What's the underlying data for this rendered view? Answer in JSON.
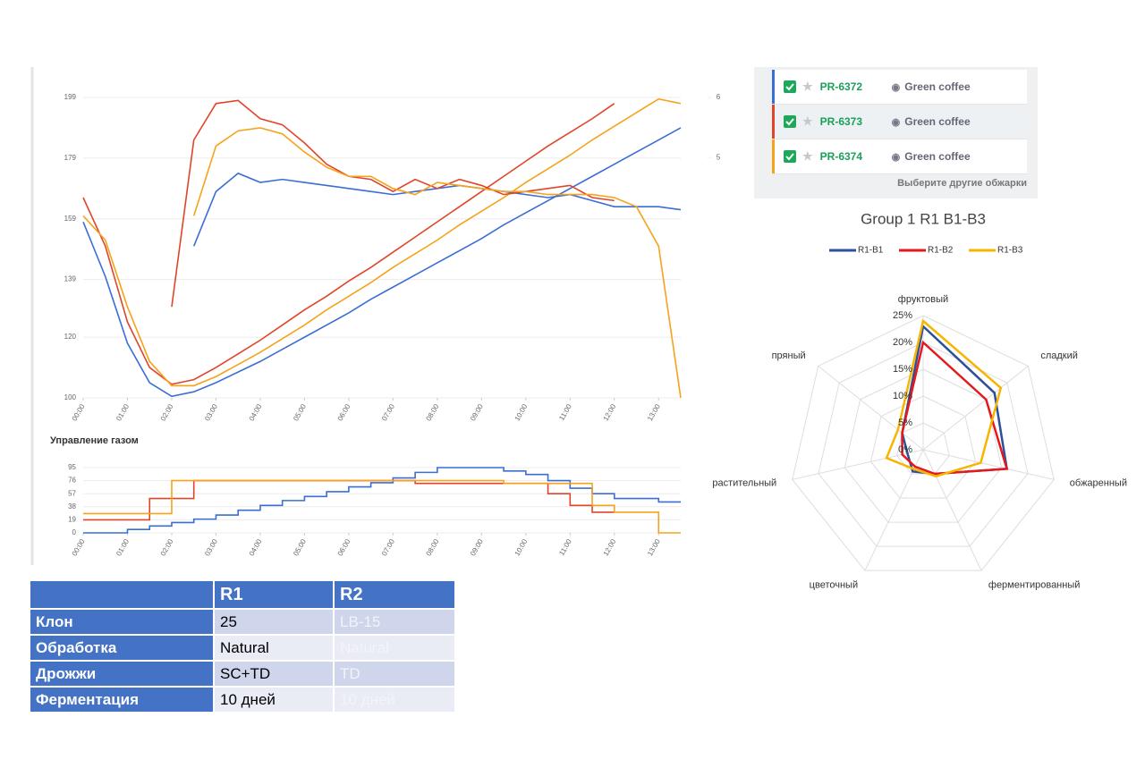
{
  "chart_data": [
    {
      "type": "line",
      "step": false,
      "grid": true,
      "x": [
        0,
        0.5,
        1,
        1.5,
        2,
        2.5,
        3,
        3.5,
        4,
        4.5,
        5,
        5.5,
        6,
        6.5,
        7,
        7.5,
        8,
        8.5,
        9,
        9.5,
        10,
        10.5,
        11,
        11.5,
        12,
        12.5,
        13,
        13.5
      ],
      "xlim": [
        0,
        13.5
      ],
      "xticks": [
        {
          "value": 0,
          "label": "00:00"
        },
        {
          "value": 1,
          "label": "01:00"
        },
        {
          "value": 2,
          "label": "02:00"
        },
        {
          "value": 3,
          "label": "03:00"
        },
        {
          "value": 4,
          "label": "04:00"
        },
        {
          "value": 5,
          "label": "05:00"
        },
        {
          "value": 6,
          "label": "06:00"
        },
        {
          "value": 7,
          "label": "07:00"
        },
        {
          "value": 8,
          "label": "08:00"
        },
        {
          "value": 9,
          "label": "09:00"
        },
        {
          "value": 10,
          "label": "10:00"
        },
        {
          "value": 11,
          "label": "11:00"
        },
        {
          "value": 12,
          "label": "12:00"
        },
        {
          "value": 13,
          "label": "13:00"
        }
      ],
      "ylim": [
        100,
        199
      ],
      "yticks": [
        100,
        120,
        139,
        159,
        179,
        199
      ],
      "y2lim": [
        1,
        6
      ],
      "y2ticks": [
        5,
        6
      ],
      "series": [
        {
          "color": "#3a6ed4",
          "values": [
            158,
            140,
            118,
            105,
            100.5,
            102,
            105,
            108.5,
            112,
            116,
            120,
            124,
            128,
            132.5,
            136.5,
            140.5,
            144.5,
            148.5,
            152.5,
            157,
            161,
            165,
            169,
            173,
            177,
            181,
            185,
            189
          ]
        },
        {
          "color": "#e0452a",
          "values": [
            166,
            150,
            125,
            110,
            104.5,
            106,
            110,
            114.5,
            119,
            124,
            129,
            133.5,
            138.5,
            143,
            148,
            153,
            158,
            163,
            168,
            173,
            178,
            183,
            187.5,
            192,
            197,
            null,
            null,
            null
          ]
        },
        {
          "color": "#f5a31a",
          "values": [
            160,
            152,
            130,
            112,
            104,
            104,
            107,
            111,
            115,
            119.5,
            124,
            129,
            133.5,
            138,
            143,
            147.5,
            152,
            157,
            161.5,
            166,
            171,
            175.5,
            180,
            185,
            189.5,
            194,
            198.5,
            197
          ]
        },
        {
          "color": "#3a6ed4",
          "values": [
            null,
            null,
            null,
            null,
            null,
            150,
            168,
            174,
            171,
            172,
            171,
            170,
            169,
            168,
            167,
            168,
            169,
            170,
            169,
            168,
            167,
            166,
            167,
            165,
            163,
            163,
            163,
            162
          ]
        },
        {
          "color": "#e0452a",
          "values": [
            null,
            null,
            null,
            null,
            130,
            185,
            197,
            198,
            192,
            190,
            184,
            177,
            173,
            172,
            168,
            172,
            169,
            172,
            170,
            167,
            168,
            169,
            170,
            166,
            165,
            null,
            null,
            null
          ]
        },
        {
          "color": "#f5a31a",
          "values": [
            null,
            null,
            null,
            null,
            null,
            160,
            183,
            188,
            189,
            187,
            181,
            176,
            173,
            173,
            169,
            167,
            171,
            170,
            169,
            168,
            168,
            167,
            167,
            167,
            166,
            163,
            150,
            100
          ]
        }
      ]
    },
    {
      "type": "line",
      "step": true,
      "grid": true,
      "title": "Управление газом",
      "x": [
        0,
        0.5,
        1,
        1.5,
        2,
        2.5,
        3,
        3.5,
        4,
        4.5,
        5,
        5.5,
        6,
        6.5,
        7,
        7.5,
        8,
        8.5,
        9,
        9.5,
        10,
        10.5,
        11,
        11.5,
        12,
        12.5,
        13,
        13.5
      ],
      "xlim": [
        0,
        13.5
      ],
      "xticks": [
        {
          "value": 0,
          "label": "00:00"
        },
        {
          "value": 1,
          "label": "01:00"
        },
        {
          "value": 2,
          "label": "02:00"
        },
        {
          "value": 3,
          "label": "03:00"
        },
        {
          "value": 4,
          "label": "04:00"
        },
        {
          "value": 5,
          "label": "05:00"
        },
        {
          "value": 6,
          "label": "06:00"
        },
        {
          "value": 7,
          "label": "07:00"
        },
        {
          "value": 8,
          "label": "08:00"
        },
        {
          "value": 9,
          "label": "09:00"
        },
        {
          "value": 10,
          "label": "10:00"
        },
        {
          "value": 11,
          "label": "11:00"
        },
        {
          "value": 12,
          "label": "12:00"
        },
        {
          "value": 13,
          "label": "13:00"
        }
      ],
      "ylim": [
        0,
        95
      ],
      "yticks": [
        0,
        19,
        38,
        57,
        76,
        95
      ],
      "series": [
        {
          "color": "#3a6ed4",
          "values": [
            0,
            0,
            5,
            10,
            15,
            20,
            26,
            33,
            40,
            47,
            53,
            60,
            67,
            73,
            80,
            88,
            95,
            95,
            95,
            90,
            85,
            76,
            65,
            57,
            50,
            50,
            45,
            45
          ]
        },
        {
          "color": "#e0452a",
          "values": [
            19,
            19,
            19,
            50,
            50,
            76,
            76,
            76,
            76,
            76,
            76,
            76,
            76,
            76,
            76,
            72,
            72,
            72,
            72,
            72,
            72,
            57,
            40,
            30,
            30,
            null,
            null,
            null
          ]
        },
        {
          "color": "#f5a31a",
          "values": [
            28,
            28,
            28,
            28,
            76,
            76,
            76,
            76,
            76,
            76,
            76,
            76,
            76,
            76,
            76,
            76,
            76,
            76,
            76,
            72,
            72,
            72,
            72,
            40,
            30,
            30,
            0,
            0
          ]
        }
      ]
    },
    {
      "type": "radar",
      "title": "Group 1 R1 B1-B3",
      "legend": "top",
      "categories": [
        "фруктовый",
        "сладкий",
        "обжаренный",
        "ферментированный",
        "цветочный",
        "растительный",
        "пряный"
      ],
      "rlim": [
        0,
        25
      ],
      "rticks": [
        {
          "value": 0,
          "label": "0%"
        },
        {
          "value": 5,
          "label": "5%"
        },
        {
          "value": 10,
          "label": "10%"
        },
        {
          "value": 15,
          "label": "15%"
        },
        {
          "value": 20,
          "label": "20%"
        },
        {
          "value": 25,
          "label": "25%"
        }
      ],
      "series": [
        {
          "name": "R1-B1",
          "color": "#2f4f99",
          "values": [
            23,
            17,
            16,
            5,
            4.5,
            3,
            5
          ]
        },
        {
          "name": "R1-B2",
          "color": "#e3191c",
          "values": [
            20,
            15,
            16,
            5,
            3.5,
            4,
            5
          ]
        },
        {
          "name": "R1-B3",
          "color": "#f7b500",
          "values": [
            24,
            18.5,
            11,
            5.5,
            4,
            7,
            6
          ]
        }
      ]
    }
  ],
  "roast_list": {
    "items": [
      {
        "id": "PR-6372",
        "label": "Green coffee"
      },
      {
        "id": "PR-6373",
        "label": "Green coffee"
      },
      {
        "id": "PR-6374",
        "label": "Green coffee"
      }
    ],
    "footer": "Выберите другие обжарки"
  },
  "table": {
    "header": [
      "R1",
      "R2"
    ],
    "rows": [
      {
        "label": "Клон",
        "values": [
          25,
          "LB-15"
        ]
      },
      {
        "label": "Обработка",
        "values": [
          "Natural",
          "Natural"
        ]
      },
      {
        "label": "Дрожжи",
        "values": [
          "SC+TD",
          "TD"
        ]
      },
      {
        "label": "Ферментация",
        "values": [
          "10 дней",
          "10 дней"
        ]
      }
    ]
  }
}
